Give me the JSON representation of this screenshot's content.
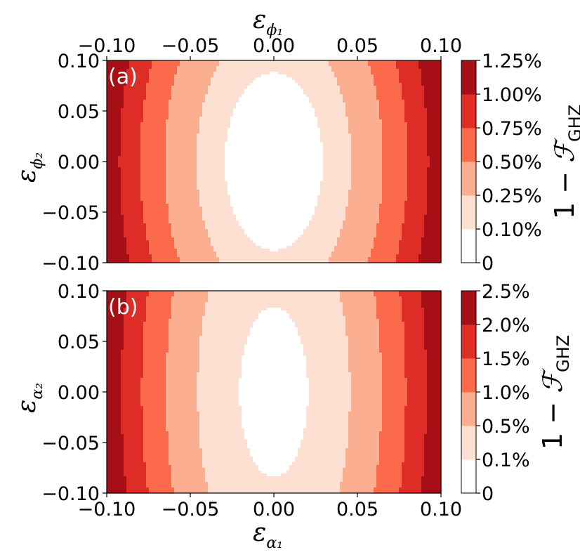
{
  "chart_data": [
    {
      "type": "contour",
      "panel_label": "(a)",
      "x_symbol": "ε",
      "x_subscript": "ϕ₁",
      "y_symbol": "ε",
      "y_subscript": "ϕ₂",
      "xlim": [
        -0.1,
        0.1
      ],
      "ylim": [
        -0.1,
        0.1
      ],
      "x_ticks": [
        "−0.10",
        "−0.05",
        "0.00",
        "0.05",
        "0.10"
      ],
      "x_tick_values": [
        -0.1,
        -0.05,
        0.0,
        0.05,
        0.1
      ],
      "y_ticks": [
        "0.10",
        "0.05",
        "0.00",
        "−0.05",
        "−0.10"
      ],
      "y_tick_values": [
        0.1,
        0.05,
        0.0,
        -0.05,
        -0.1
      ],
      "x_axis_position": "top",
      "colorbar_label": "1 − ",
      "colorbar_label_symbol": "ℱ",
      "colorbar_label_sub": "GHZ",
      "levels_display": [
        "0",
        "0.10%",
        "0.25%",
        "0.50%",
        "0.75%",
        "1.00%",
        "1.25%"
      ],
      "levels": [
        0,
        0.001,
        0.0025,
        0.005,
        0.0075,
        0.01,
        0.0125
      ],
      "colors": [
        "#ffffff",
        "#fee0d2",
        "#fcae91",
        "#fb6a4a",
        "#de2d26",
        "#a50f15"
      ],
      "model": {
        "coef_x": 1.17,
        "coef_y": 0.13
      }
    },
    {
      "type": "contour",
      "panel_label": "(b)",
      "x_symbol": "ε",
      "x_subscript": "α₁",
      "y_symbol": "ε",
      "y_subscript": "α₂",
      "xlim": [
        -0.1,
        0.1
      ],
      "ylim": [
        -0.1,
        0.1
      ],
      "x_ticks": [
        "−0.10",
        "−0.05",
        "0.00",
        "0.05",
        "0.10"
      ],
      "x_tick_values": [
        -0.1,
        -0.05,
        0.0,
        0.05,
        0.1
      ],
      "y_ticks": [
        "0.10",
        "0.05",
        "0.00",
        "−0.05",
        "−0.10"
      ],
      "y_tick_values": [
        0.1,
        0.05,
        0.0,
        -0.05,
        -0.1
      ],
      "x_axis_position": "bottom",
      "colorbar_label": "1 − ",
      "colorbar_label_symbol": "ℱ",
      "colorbar_label_sub": "GHZ",
      "levels_display": [
        "0",
        "0.1%",
        "0.5%",
        "1.0%",
        "1.5%",
        "2.0%",
        "2.5%"
      ],
      "levels": [
        0,
        0.001,
        0.005,
        0.01,
        0.015,
        0.02,
        0.025
      ],
      "colors": [
        "#ffffff",
        "#fee0d2",
        "#fcae91",
        "#fb6a4a",
        "#de2d26",
        "#a50f15"
      ],
      "model": {
        "coef_x": 2.4,
        "coef_y": 0.14
      }
    }
  ]
}
